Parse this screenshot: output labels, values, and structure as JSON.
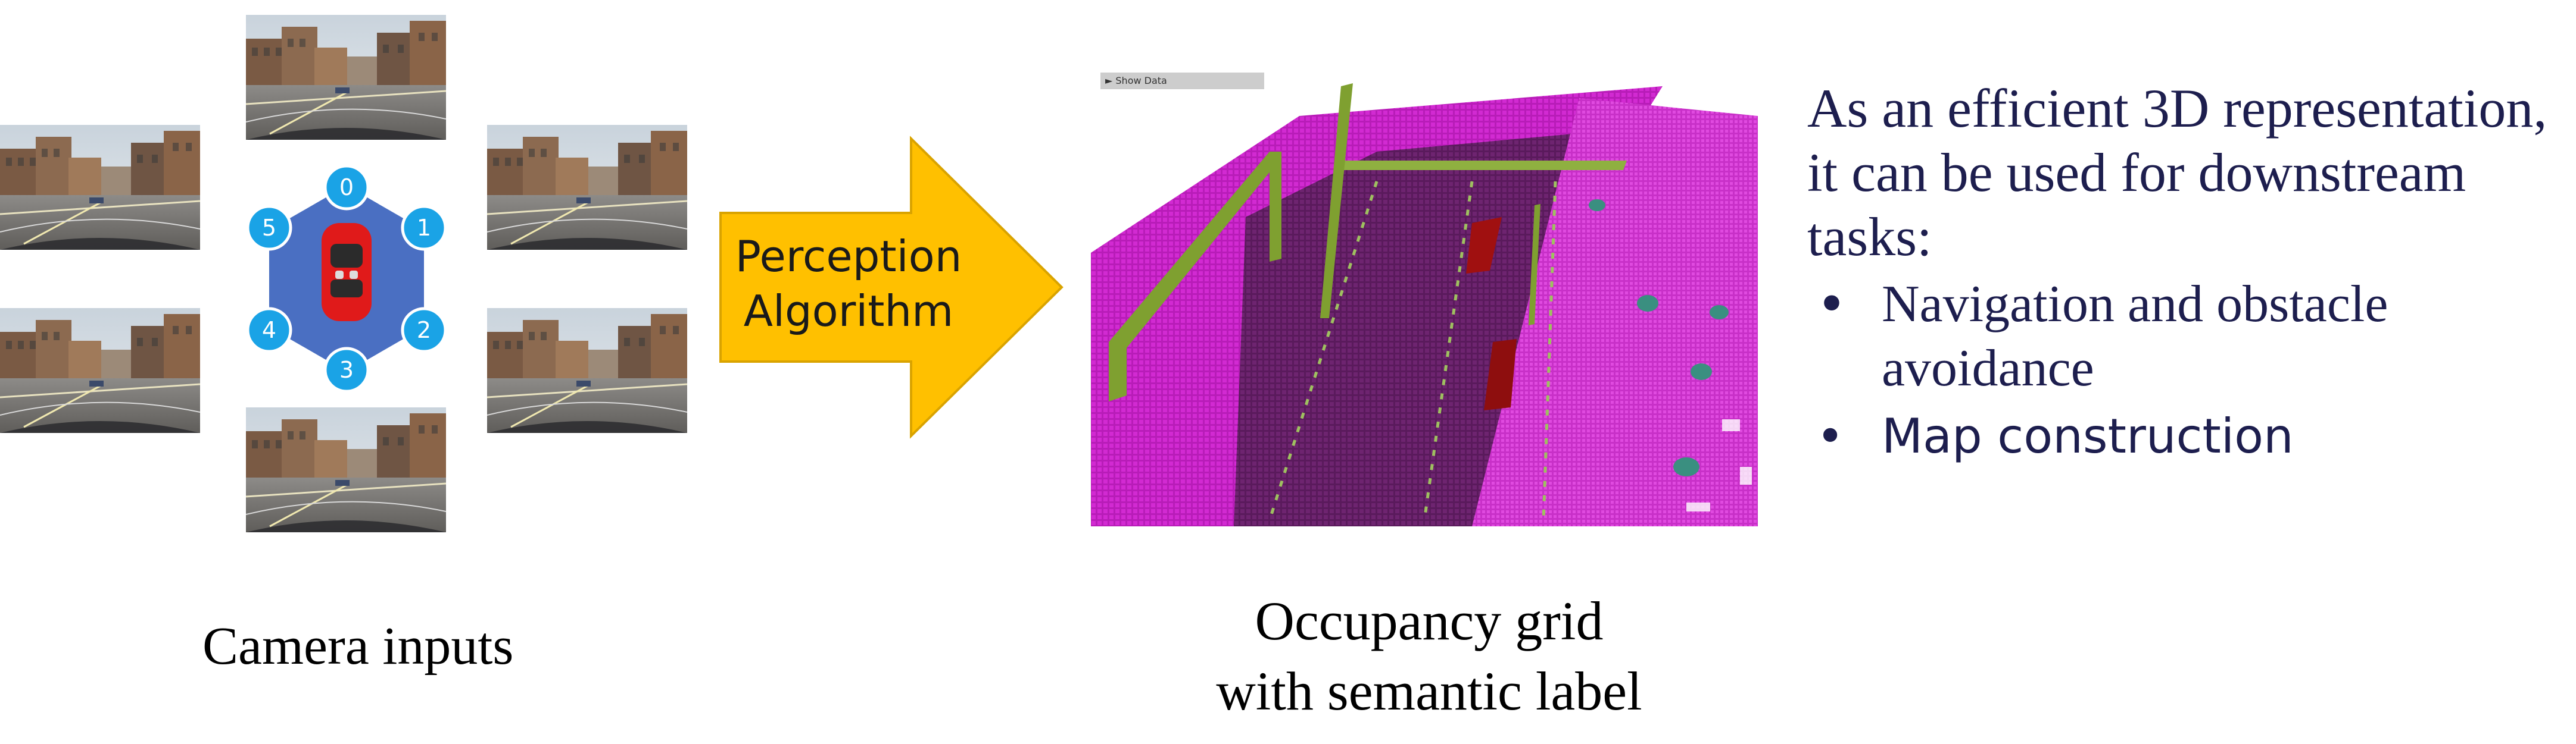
{
  "camera_section": {
    "caption": "Camera inputs",
    "camera_ids": [
      "0",
      "1",
      "2",
      "3",
      "4",
      "5"
    ]
  },
  "arrow": {
    "label_line1": "Perception",
    "label_line2": "Algorithm",
    "fill_color": "#ffc000",
    "stroke_color": "#d9a300"
  },
  "occupancy": {
    "viewer_button": "► Show Data",
    "caption_line1": "Occupancy grid",
    "caption_line2": "with semantic label",
    "colors": {
      "sidewalk": "#c020c0",
      "road": "#6a1e6a",
      "vegetation": "#7fa030",
      "vehicle": "#a01010"
    }
  },
  "description": {
    "intro_line1": "As an efficient 3D representation,",
    "intro_line2": "it can be used for downstream",
    "intro_line3": "tasks:",
    "bullets": [
      {
        "line1": "Navigation and obstacle",
        "line2": "avoidance"
      },
      {
        "line1": "Map construction"
      }
    ],
    "bullet_symbol": "•",
    "text_color": "#1d1e4e"
  }
}
